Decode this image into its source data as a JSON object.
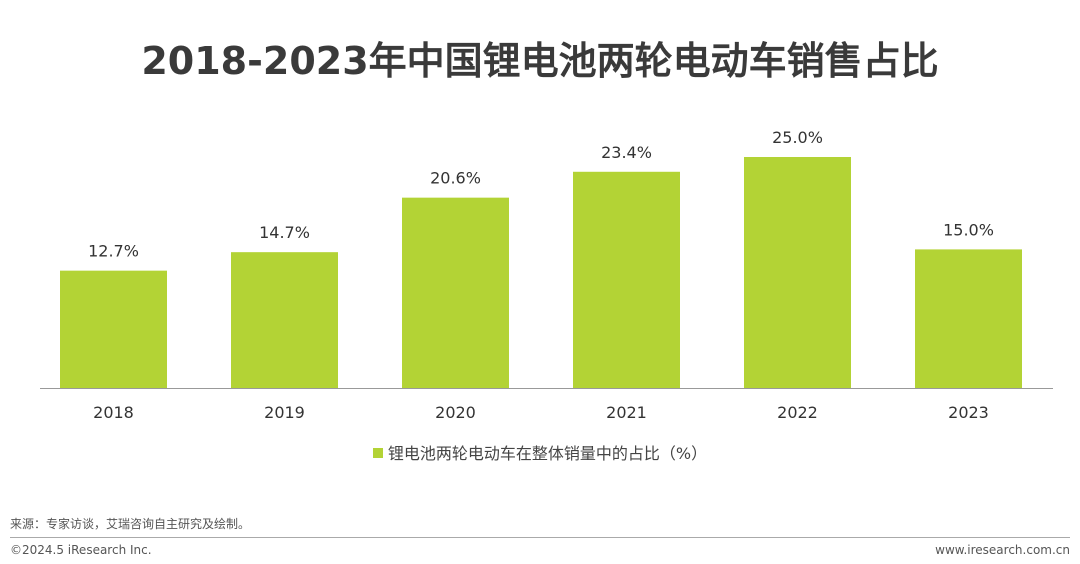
{
  "chart_data": {
    "type": "bar",
    "title": "2018-2023年中国锂电池两轮电动车销售占比",
    "categories": [
      "2018",
      "2019",
      "2020",
      "2021",
      "2022",
      "2023"
    ],
    "series": [
      {
        "name": "锂电池两轮电动车在整体销量中的占比（%）",
        "values": [
          12.7,
          14.7,
          20.6,
          23.4,
          25.0,
          15.0
        ]
      }
    ],
    "data_labels": [
      "12.7%",
      "14.7%",
      "20.6%",
      "23.4%",
      "25.0%",
      "15.0%"
    ],
    "ylim": [
      0,
      28
    ],
    "y_axis_visible": false,
    "grid": false,
    "legend_position": "bottom",
    "bar_color": "#b3d335"
  },
  "footer": {
    "source": "来源：专家访谈，艾瑞咨询自主研究及绘制。",
    "copyright": "©2024.5 iResearch Inc.",
    "website": "www.iresearch.com.cn"
  }
}
